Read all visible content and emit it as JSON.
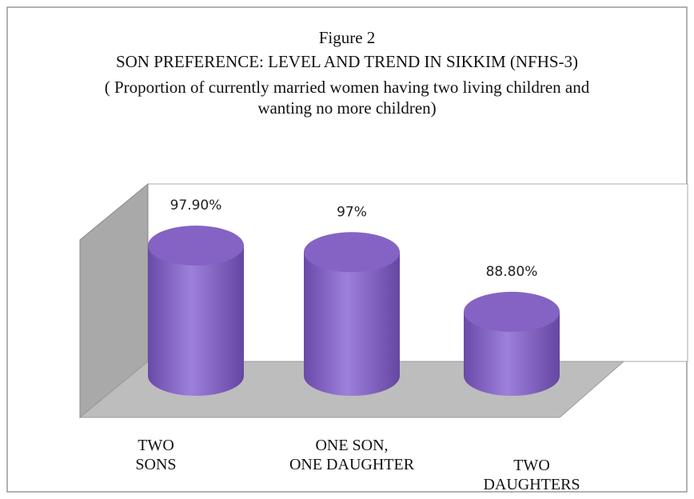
{
  "chart_data": {
    "type": "bar3d",
    "title": "Figure 2",
    "subtitle": "SON PREFERENCE: LEVEL AND TREND IN SIKKIM (NFHS-3)",
    "note": "( Proportion of currently married women having two living children and\nwanting no more children)",
    "categories": [
      "TWO\nSONS",
      "ONE SON,\nONE DAUGHTER",
      "TWO\nDAUGHTERS"
    ],
    "values": [
      97.9,
      97,
      88.8
    ],
    "value_labels": [
      "97.90%",
      "97%",
      "88.80%"
    ],
    "color": "#8463c4",
    "ylim": [
      80,
      100
    ]
  }
}
